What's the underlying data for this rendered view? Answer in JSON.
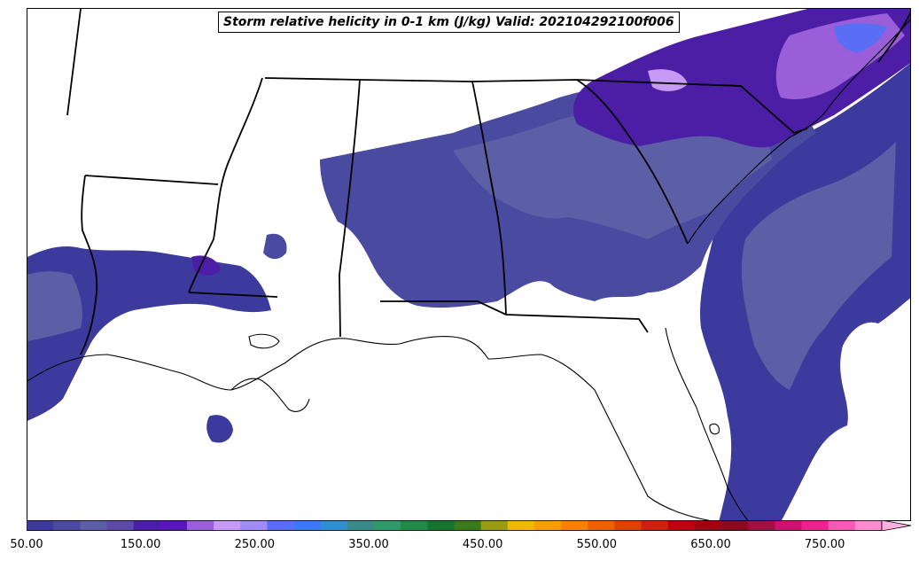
{
  "map": {
    "title": "Storm relative helicity in 0-1 km (J/kg) Valid: 202104292100f006"
  },
  "colorbar": {
    "min": 50,
    "max": 800,
    "step": 25,
    "extend": "max",
    "colors": [
      "#3d3a9e",
      "#4a4aa0",
      "#5c5ea6",
      "#5d4aa8",
      "#4c1ea6",
      "#5a17b5",
      "#9a5ed9",
      "#c79af5",
      "#9f8cf5",
      "#5a6ef5",
      "#3b7af0",
      "#2f8fd0",
      "#3a8a8a",
      "#2f9a6a",
      "#1f8a4a",
      "#137530",
      "#3a7a1a",
      "#9a9a1a",
      "#f2b800",
      "#f5a000",
      "#f58200",
      "#f06000",
      "#e04000",
      "#d02010",
      "#c00010",
      "#a00010",
      "#8a0a20",
      "#a01040",
      "#d01070",
      "#f02090",
      "#f55ab5",
      "#ff8cd0"
    ],
    "extend_color": "#ffb0e0",
    "tick_values": [
      "50.00",
      "150.00",
      "250.00",
      "350.00",
      "450.00",
      "550.00",
      "650.00",
      "750.00"
    ]
  }
}
